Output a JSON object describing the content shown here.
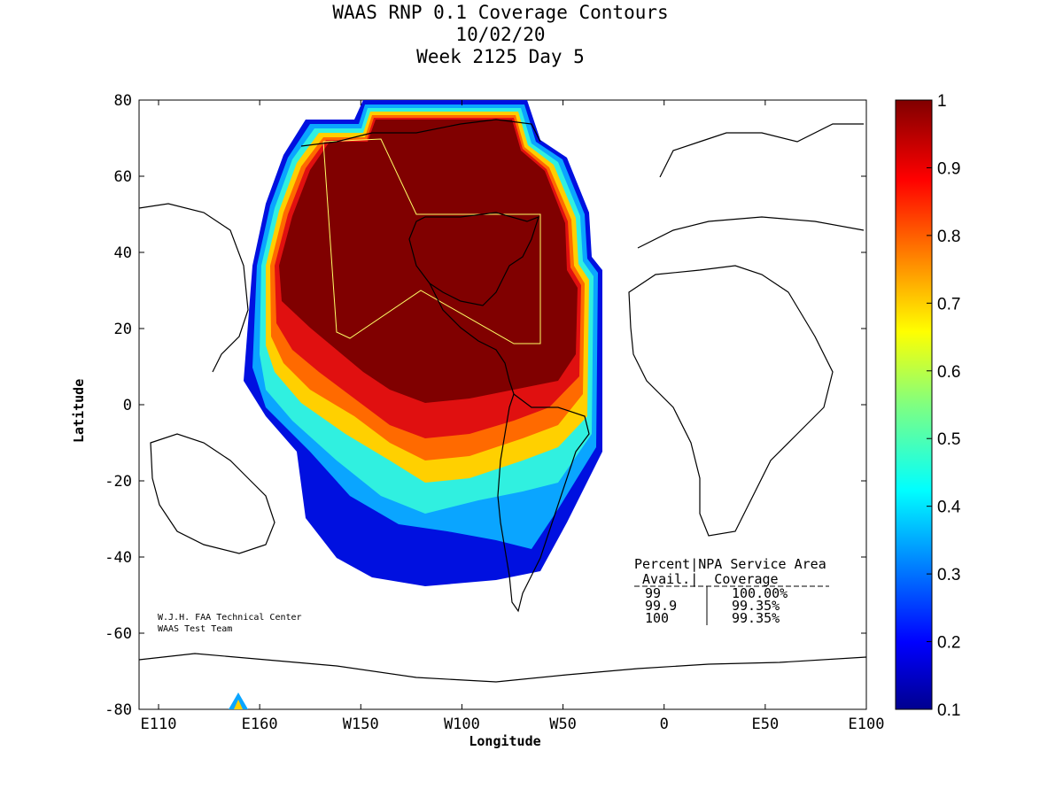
{
  "chart_data": {
    "type": "heatmap",
    "title_lines": [
      "WAAS RNP 0.1 Coverage Contours",
      "10/02/20",
      "Week 2125 Day 5"
    ],
    "xlabel": "Longitude",
    "ylabel": "Latitude",
    "x_ticks": [
      "E110",
      "E160",
      "W150",
      "W100",
      "W50",
      "0",
      "E50",
      "E100"
    ],
    "y_ticks": [
      "80",
      "60",
      "40",
      "20",
      "0",
      "-20",
      "-40",
      "-60",
      "-80"
    ],
    "colorbar": {
      "ticks": [
        "1",
        "0.9",
        "0.8",
        "0.7",
        "0.6",
        "0.5",
        "0.4",
        "0.3",
        "0.2",
        "0.1"
      ],
      "range": [
        0.1,
        1
      ],
      "colormap": "jet"
    },
    "credit_lines": [
      "W.J.H. FAA Technical Center",
      "WAAS Test Team"
    ],
    "table": {
      "header1": "Percent|NPA Service Area",
      "header2": " Avail.|  Coverage",
      "rows": [
        {
          "avail": "99",
          "coverage": "100.00%"
        },
        {
          "avail": "99.9",
          "coverage": "99.35%"
        },
        {
          "avail": "100",
          "coverage": "99.35%"
        }
      ]
    }
  }
}
